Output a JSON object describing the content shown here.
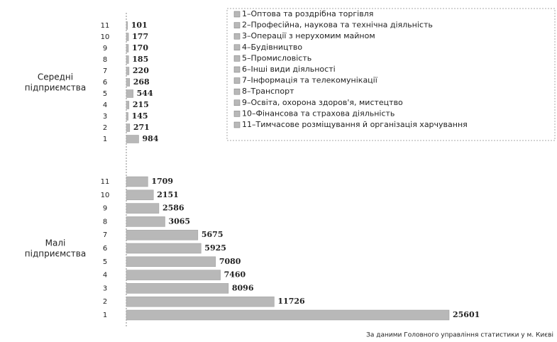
{
  "chart_data": {
    "type": "bar",
    "orientation": "horizontal",
    "color": "#b8b8b8",
    "groups": [
      {
        "name": [
          "Середні",
          "підприємства"
        ],
        "categories": [
          "11",
          "10",
          "9",
          "8",
          "7",
          "6",
          "5",
          "4",
          "3",
          "2",
          "1"
        ],
        "values": [
          101,
          177,
          170,
          185,
          220,
          268,
          544,
          215,
          145,
          271,
          984
        ]
      },
      {
        "name": [
          "Малі",
          "підприємства"
        ],
        "categories": [
          "11",
          "10",
          "9",
          "8",
          "7",
          "6",
          "5",
          "4",
          "3",
          "2",
          "1"
        ],
        "values": [
          1709,
          2151,
          2586,
          3065,
          5675,
          5925,
          7080,
          7460,
          8096,
          11726,
          25601
        ]
      }
    ],
    "legend": [
      "1–Оптова та роздрібна торгівля",
      "2–Професійна, наукова та технічна діяльність",
      "3–Операції з нерухомим майном",
      "4–Будівництво",
      "5–Промисловість",
      "6–Інші види діяльності",
      "7–Інформація та телекомунікації",
      "8–Транспорт",
      "9–Освіта, охорона здоров'я, мистецтво",
      "10–Фінансова та страхова діяльність",
      "11–Тимчасове розміщування й організація харчування"
    ],
    "source": "За даними Головного управління статистики у м. Києві"
  }
}
